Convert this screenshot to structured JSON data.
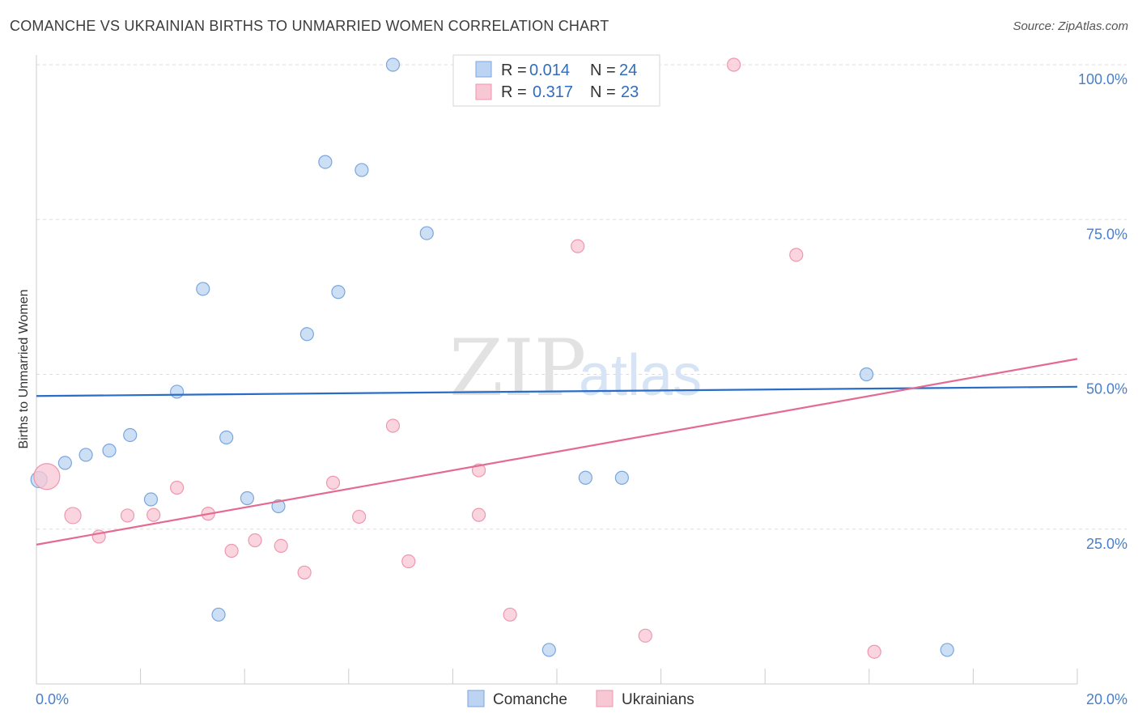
{
  "title": "COMANCHE VS UKRAINIAN BIRTHS TO UNMARRIED WOMEN CORRELATION CHART",
  "source": "Source: ZipAtlas.com",
  "watermark": {
    "part1": "ZIP",
    "part2": "atlas"
  },
  "colors": {
    "comanche_fill": "#bcd4f2",
    "comanche_stroke": "#7aa6dc",
    "comanche_line": "#2a6dc8",
    "ukrainians_fill": "#f8c7d4",
    "ukrainians_stroke": "#ee97ae",
    "ukrainians_line": "#e46a92",
    "tick_text": "#4a7fc8",
    "grid": "#dddddd"
  },
  "legend_top": {
    "rows": [
      {
        "r_label": "R =",
        "r_value": "0.014",
        "n_label": "N =",
        "n_value": "24"
      },
      {
        "r_label": "R =",
        "r_value": "0.317",
        "n_label": "N =",
        "n_value": "23"
      }
    ]
  },
  "legend_bottom": [
    "Comanche",
    "Ukrainians"
  ],
  "chart_data": {
    "type": "scatter",
    "title": "COMANCHE VS UKRAINIAN BIRTHS TO UNMARRIED WOMEN CORRELATION CHART",
    "xlabel": "",
    "ylabel": "Births to Unmarried Women",
    "xlim": [
      0,
      20
    ],
    "ylim": [
      0,
      100
    ],
    "x_tick_labels": [
      "0.0%",
      "20.0%"
    ],
    "y_tick_labels": [
      "100.0%",
      "75.0%",
      "50.0%",
      "25.0%"
    ],
    "y_ticks": [
      100,
      75,
      50,
      25
    ],
    "grid": true,
    "legend_position": "top-center",
    "series": [
      {
        "name": "Comanche",
        "r": 0.014,
        "n": 24,
        "trend": {
          "x": [
            0,
            20
          ],
          "y": [
            46.5,
            48.0
          ]
        },
        "points": [
          {
            "x": 0.05,
            "y": 33,
            "size": 10
          },
          {
            "x": 0.55,
            "y": 35.7,
            "size": 8
          },
          {
            "x": 0.95,
            "y": 37,
            "size": 8
          },
          {
            "x": 1.4,
            "y": 37.7,
            "size": 8
          },
          {
            "x": 1.8,
            "y": 40.2,
            "size": 8
          },
          {
            "x": 2.2,
            "y": 29.8,
            "size": 8
          },
          {
            "x": 2.7,
            "y": 47.2,
            "size": 8
          },
          {
            "x": 3.2,
            "y": 63.8,
            "size": 8
          },
          {
            "x": 3.5,
            "y": 11.2,
            "size": 8
          },
          {
            "x": 3.65,
            "y": 39.8,
            "size": 8
          },
          {
            "x": 4.05,
            "y": 30,
            "size": 8
          },
          {
            "x": 4.65,
            "y": 28.7,
            "size": 8
          },
          {
            "x": 5.2,
            "y": 56.5,
            "size": 8
          },
          {
            "x": 5.55,
            "y": 84.3,
            "size": 8
          },
          {
            "x": 5.8,
            "y": 63.3,
            "size": 8
          },
          {
            "x": 6.25,
            "y": 83,
            "size": 8
          },
          {
            "x": 6.85,
            "y": 100,
            "size": 8
          },
          {
            "x": 7.5,
            "y": 72.8,
            "size": 8
          },
          {
            "x": 9.85,
            "y": 5.5,
            "size": 8
          },
          {
            "x": 10.55,
            "y": 33.3,
            "size": 8
          },
          {
            "x": 11.0,
            "y": 100,
            "size": 8
          },
          {
            "x": 11.25,
            "y": 33.3,
            "size": 8
          },
          {
            "x": 15.95,
            "y": 50,
            "size": 8
          },
          {
            "x": 17.5,
            "y": 5.5,
            "size": 8
          }
        ]
      },
      {
        "name": "Ukrainians",
        "r": 0.317,
        "n": 23,
        "trend": {
          "x": [
            0,
            20
          ],
          "y": [
            22.5,
            52.5
          ]
        },
        "points": [
          {
            "x": 0.2,
            "y": 33.5,
            "size": 16
          },
          {
            "x": 0.7,
            "y": 27.2,
            "size": 10
          },
          {
            "x": 1.2,
            "y": 23.8,
            "size": 8
          },
          {
            "x": 1.75,
            "y": 27.2,
            "size": 8
          },
          {
            "x": 2.25,
            "y": 27.3,
            "size": 8
          },
          {
            "x": 2.7,
            "y": 31.7,
            "size": 8
          },
          {
            "x": 3.3,
            "y": 27.5,
            "size": 8
          },
          {
            "x": 3.75,
            "y": 21.5,
            "size": 8
          },
          {
            "x": 4.2,
            "y": 23.2,
            "size": 8
          },
          {
            "x": 4.7,
            "y": 22.3,
            "size": 8
          },
          {
            "x": 5.15,
            "y": 18,
            "size": 8
          },
          {
            "x": 5.7,
            "y": 32.5,
            "size": 8
          },
          {
            "x": 6.2,
            "y": 27,
            "size": 8
          },
          {
            "x": 6.85,
            "y": 41.7,
            "size": 8
          },
          {
            "x": 7.15,
            "y": 19.8,
            "size": 8
          },
          {
            "x": 8.5,
            "y": 34.5,
            "size": 8
          },
          {
            "x": 8.5,
            "y": 27.3,
            "size": 8
          },
          {
            "x": 9.1,
            "y": 11.2,
            "size": 8
          },
          {
            "x": 10.4,
            "y": 70.7,
            "size": 8
          },
          {
            "x": 11.7,
            "y": 7.8,
            "size": 8
          },
          {
            "x": 13.4,
            "y": 100,
            "size": 8
          },
          {
            "x": 14.6,
            "y": 69.3,
            "size": 8
          },
          {
            "x": 16.1,
            "y": 5.2,
            "size": 8
          }
        ]
      }
    ]
  }
}
